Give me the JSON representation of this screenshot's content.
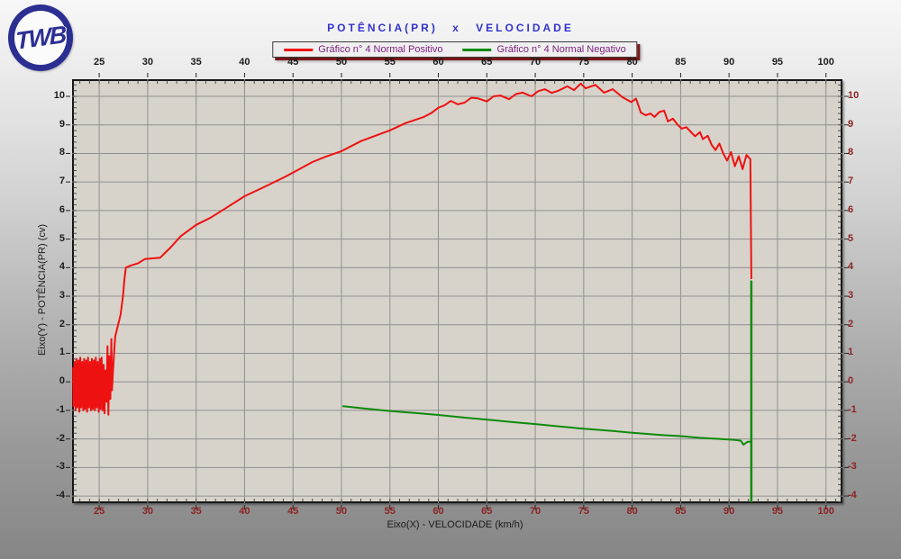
{
  "header": {
    "logo_text": "TWB",
    "title": "POTÊNCIA(PR)  x  VELOCIDADE",
    "title_color": "#3232cc"
  },
  "legend": {
    "items": [
      {
        "label": "Gráfico n° 4 Normal Positivo",
        "color": "#ee1111"
      },
      {
        "label": "Gráfico n° 4 Normal Negativo",
        "color": "#0c8a0c"
      }
    ],
    "text_color": "#7c1d7c"
  },
  "axes": {
    "x_title": "Eixo(X) - VELOCIDADE (km/h)",
    "y_title": "Eixo(Y) - POTÊNCIA(PR) (cv)",
    "top_left_label_color": "#1b1b1b",
    "bottom_right_label_color": "#8e2323"
  },
  "chart_data": {
    "type": "line",
    "title": "POTÊNCIA(PR) x VELOCIDADE",
    "xlabel": "Eixo(X) - VELOCIDADE (km/h)",
    "ylabel": "Eixo(Y) - POTÊNCIA(PR) (cv)",
    "xlim": [
      22.2,
      101.7
    ],
    "ylim": [
      -4.25,
      10.6
    ],
    "x_ticks": [
      25,
      30,
      35,
      40,
      45,
      50,
      55,
      60,
      65,
      70,
      75,
      80,
      85,
      90,
      95,
      100
    ],
    "y_ticks": [
      10,
      9,
      8,
      7,
      6,
      5,
      4,
      3,
      2,
      1,
      0,
      -1,
      -2,
      -3,
      -4
    ],
    "x_minor_step": 1,
    "y_minor_step": 0.2,
    "grid": true,
    "grid_color": "#909090",
    "plot_bg": "#d7d3ca",
    "legend_position": "top-center",
    "series": [
      {
        "name": "Gráfico n° 4 Normal Positivo",
        "color": "#ee1111",
        "points": [
          [
            22.3,
            0.5
          ],
          [
            22.35,
            -0.85
          ],
          [
            22.45,
            0.7
          ],
          [
            22.55,
            -1.0
          ],
          [
            22.65,
            0.8
          ],
          [
            22.75,
            -0.9
          ],
          [
            22.85,
            0.75
          ],
          [
            22.95,
            -1.05
          ],
          [
            23.05,
            0.85
          ],
          [
            23.15,
            -0.9
          ],
          [
            23.25,
            0.7
          ],
          [
            23.35,
            -1.0
          ],
          [
            23.45,
            0.8
          ],
          [
            23.55,
            -0.95
          ],
          [
            23.65,
            0.75
          ],
          [
            23.75,
            -1.05
          ],
          [
            23.85,
            0.85
          ],
          [
            23.95,
            -0.9
          ],
          [
            24.05,
            0.7
          ],
          [
            24.15,
            -1.0
          ],
          [
            24.25,
            0.8
          ],
          [
            24.35,
            -0.95
          ],
          [
            24.45,
            0.75
          ],
          [
            24.55,
            -1.0
          ],
          [
            24.65,
            0.85
          ],
          [
            24.75,
            -0.9
          ],
          [
            24.85,
            0.7
          ],
          [
            24.95,
            -1.05
          ],
          [
            25.05,
            0.8
          ],
          [
            25.15,
            -0.95
          ],
          [
            25.25,
            0.85
          ],
          [
            25.35,
            -1.0
          ],
          [
            25.45,
            0.6
          ],
          [
            25.55,
            -1.1
          ],
          [
            25.65,
            0.4
          ],
          [
            25.75,
            -0.7
          ],
          [
            25.85,
            1.25
          ],
          [
            25.95,
            -1.15
          ],
          [
            26.05,
            0.9
          ],
          [
            26.15,
            -0.6
          ],
          [
            26.25,
            1.5
          ],
          [
            26.32,
            -0.3
          ],
          [
            26.42,
            0.35
          ],
          [
            26.52,
            0.95
          ],
          [
            26.65,
            1.6
          ],
          [
            26.95,
            2.0
          ],
          [
            27.2,
            2.35
          ],
          [
            27.45,
            3.0
          ],
          [
            27.6,
            3.6
          ],
          [
            27.75,
            4.0
          ],
          [
            28.3,
            4.08
          ],
          [
            29.0,
            4.15
          ],
          [
            29.7,
            4.3
          ],
          [
            31.3,
            4.35
          ],
          [
            32.4,
            4.72
          ],
          [
            33.4,
            5.1
          ],
          [
            35.0,
            5.5
          ],
          [
            36.5,
            5.75
          ],
          [
            38.0,
            6.07
          ],
          [
            40.0,
            6.5
          ],
          [
            42.0,
            6.82
          ],
          [
            44.0,
            7.15
          ],
          [
            45.0,
            7.33
          ],
          [
            47.0,
            7.7
          ],
          [
            48.5,
            7.9
          ],
          [
            50.0,
            8.08
          ],
          [
            52.0,
            8.43
          ],
          [
            53.5,
            8.62
          ],
          [
            55.0,
            8.81
          ],
          [
            56.6,
            9.06
          ],
          [
            58.5,
            9.28
          ],
          [
            59.3,
            9.42
          ],
          [
            60.0,
            9.6
          ],
          [
            60.6,
            9.68
          ],
          [
            61.3,
            9.84
          ],
          [
            62.0,
            9.72
          ],
          [
            62.7,
            9.78
          ],
          [
            63.4,
            9.95
          ],
          [
            64.1,
            9.93
          ],
          [
            65.0,
            9.82
          ],
          [
            65.7,
            10.0
          ],
          [
            66.4,
            10.03
          ],
          [
            67.3,
            9.9
          ],
          [
            68.0,
            10.08
          ],
          [
            68.7,
            10.13
          ],
          [
            69.6,
            10.0
          ],
          [
            70.3,
            10.18
          ],
          [
            71.0,
            10.25
          ],
          [
            71.7,
            10.12
          ],
          [
            72.4,
            10.2
          ],
          [
            73.3,
            10.35
          ],
          [
            74.0,
            10.22
          ],
          [
            74.7,
            10.45
          ],
          [
            75.2,
            10.28
          ],
          [
            76.2,
            10.4
          ],
          [
            77.1,
            10.13
          ],
          [
            78.0,
            10.25
          ],
          [
            79.0,
            9.97
          ],
          [
            79.9,
            9.8
          ],
          [
            80.4,
            9.92
          ],
          [
            80.9,
            9.43
          ],
          [
            81.4,
            9.34
          ],
          [
            81.9,
            9.4
          ],
          [
            82.3,
            9.28
          ],
          [
            82.8,
            9.45
          ],
          [
            83.3,
            9.5
          ],
          [
            83.7,
            9.12
          ],
          [
            84.2,
            9.22
          ],
          [
            84.7,
            9.0
          ],
          [
            85.1,
            8.87
          ],
          [
            85.6,
            8.92
          ],
          [
            86.1,
            8.74
          ],
          [
            86.5,
            8.6
          ],
          [
            87.0,
            8.75
          ],
          [
            87.3,
            8.5
          ],
          [
            87.8,
            8.62
          ],
          [
            88.2,
            8.3
          ],
          [
            88.6,
            8.12
          ],
          [
            89.0,
            8.35
          ],
          [
            89.4,
            8.0
          ],
          [
            89.8,
            7.75
          ],
          [
            90.2,
            8.05
          ],
          [
            90.6,
            7.55
          ],
          [
            91.0,
            7.9
          ],
          [
            91.4,
            7.45
          ],
          [
            91.8,
            7.95
          ],
          [
            92.2,
            7.8
          ],
          [
            92.3,
            3.6
          ]
        ]
      },
      {
        "name": "Gráfico n° 4 Normal Negativo",
        "color": "#0c8a0c",
        "points": [
          [
            50.1,
            -0.85
          ],
          [
            52,
            -0.92
          ],
          [
            55,
            -1.02
          ],
          [
            58,
            -1.1
          ],
          [
            60,
            -1.16
          ],
          [
            63,
            -1.26
          ],
          [
            65,
            -1.32
          ],
          [
            68,
            -1.42
          ],
          [
            70,
            -1.48
          ],
          [
            73,
            -1.58
          ],
          [
            75,
            -1.64
          ],
          [
            78,
            -1.72
          ],
          [
            80,
            -1.78
          ],
          [
            83,
            -1.86
          ],
          [
            85,
            -1.9
          ],
          [
            87,
            -1.96
          ],
          [
            89,
            -2.0
          ],
          [
            90.5,
            -2.03
          ],
          [
            91.2,
            -2.06
          ],
          [
            91.5,
            -2.2
          ],
          [
            91.9,
            -2.1
          ],
          [
            92.3,
            -2.1
          ]
        ],
        "drop_segment": [
          [
            92.3,
            3.55
          ],
          [
            92.3,
            -4.22
          ]
        ]
      }
    ]
  }
}
